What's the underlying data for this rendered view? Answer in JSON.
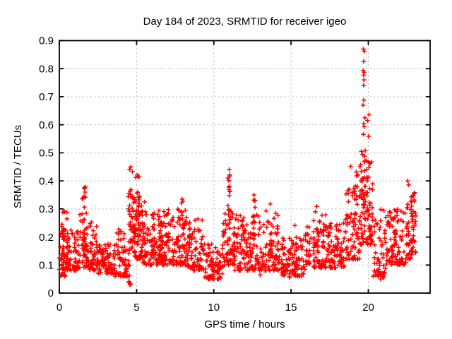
{
  "figure": {
    "background": "#ffffff"
  },
  "chart_data": {
    "type": "scatter",
    "title": "Day 184 of 2023, SRMTID for receiver igeo",
    "xlabel": "GPS time / hours",
    "ylabel": "SRMTID / TECUs",
    "xlim": [
      0,
      24
    ],
    "ylim": [
      0,
      0.9
    ],
    "xticks": [
      [
        0,
        "0"
      ],
      [
        5,
        "5"
      ],
      [
        10,
        "10"
      ],
      [
        15,
        "15"
      ],
      [
        20,
        "20"
      ]
    ],
    "yticks": [
      [
        0,
        "0"
      ],
      [
        0.1,
        "0.1"
      ],
      [
        0.2,
        "0.2"
      ],
      [
        0.3,
        "0.3"
      ],
      [
        0.4,
        "0.4"
      ],
      [
        0.5,
        "0.5"
      ],
      [
        0.6,
        "0.6"
      ],
      [
        0.7,
        "0.7"
      ],
      [
        0.8,
        "0.8"
      ],
      [
        0.9,
        "0.9"
      ]
    ],
    "grid": true,
    "legend": "none",
    "marker": "plus",
    "marker_color": "#ff0000",
    "frame_color": "#000000",
    "grid_color": "#b2b2b2",
    "seed": 184,
    "series_name": "SRMTID",
    "cloud_bands": [
      {
        "h0": 0.0,
        "h1": 0.4,
        "lo": 0.06,
        "hi": 0.25,
        "n": 40
      },
      {
        "h0": 0.4,
        "h1": 1.3,
        "lo": 0.08,
        "hi": 0.23,
        "n": 70
      },
      {
        "h0": 1.3,
        "h1": 1.95,
        "lo": 0.09,
        "hi": 0.3,
        "n": 50
      },
      {
        "h0": 1.95,
        "h1": 2.5,
        "lo": 0.08,
        "hi": 0.25,
        "n": 45
      },
      {
        "h0": 2.5,
        "h1": 3.6,
        "lo": 0.07,
        "hi": 0.18,
        "n": 80
      },
      {
        "h0": 3.6,
        "h1": 4.35,
        "lo": 0.06,
        "hi": 0.23,
        "n": 55
      },
      {
        "h0": 4.35,
        "h1": 4.62,
        "lo": 0.03,
        "hi": 0.17,
        "n": 14
      },
      {
        "h0": 4.62,
        "h1": 5.4,
        "lo": 0.12,
        "hi": 0.36,
        "n": 70
      },
      {
        "h0": 5.4,
        "h1": 6.3,
        "lo": 0.1,
        "hi": 0.29,
        "n": 70
      },
      {
        "h0": 6.3,
        "h1": 7.3,
        "lo": 0.1,
        "hi": 0.3,
        "n": 75
      },
      {
        "h0": 7.3,
        "h1": 8.3,
        "lo": 0.1,
        "hi": 0.3,
        "n": 75
      },
      {
        "h0": 8.3,
        "h1": 9.3,
        "lo": 0.08,
        "hi": 0.27,
        "n": 75
      },
      {
        "h0": 9.3,
        "h1": 10.6,
        "lo": 0.05,
        "hi": 0.18,
        "n": 85
      },
      {
        "h0": 10.6,
        "h1": 11.35,
        "lo": 0.1,
        "hi": 0.31,
        "n": 55
      },
      {
        "h0": 11.35,
        "h1": 12.35,
        "lo": 0.08,
        "hi": 0.28,
        "n": 70
      },
      {
        "h0": 12.35,
        "h1": 13.35,
        "lo": 0.08,
        "hi": 0.28,
        "n": 70
      },
      {
        "h0": 13.35,
        "h1": 14.2,
        "lo": 0.08,
        "hi": 0.3,
        "n": 60
      },
      {
        "h0": 14.2,
        "h1": 15.9,
        "lo": 0.06,
        "hi": 0.2,
        "n": 110
      },
      {
        "h0": 15.9,
        "h1": 17.25,
        "lo": 0.09,
        "hi": 0.28,
        "n": 85
      },
      {
        "h0": 17.25,
        "h1": 18.5,
        "lo": 0.09,
        "hi": 0.26,
        "n": 85
      },
      {
        "h0": 18.5,
        "h1": 19.45,
        "lo": 0.12,
        "hi": 0.38,
        "n": 70
      },
      {
        "h0": 19.45,
        "h1": 20.3,
        "lo": 0.17,
        "hi": 0.48,
        "n": 75
      },
      {
        "h0": 20.3,
        "h1": 21.1,
        "lo": 0.06,
        "hi": 0.3,
        "n": 55
      },
      {
        "h0": 21.1,
        "h1": 22.45,
        "lo": 0.1,
        "hi": 0.3,
        "n": 90
      },
      {
        "h0": 22.45,
        "h1": 23.1,
        "lo": 0.12,
        "hi": 0.34,
        "n": 50
      }
    ],
    "spike_columns": [
      {
        "h": 0.25,
        "w": 0.1,
        "lo": 0.14,
        "hi": 0.3,
        "n": 10
      },
      {
        "h": 0.55,
        "w": 0.08,
        "lo": 0.14,
        "hi": 0.31,
        "n": 6
      },
      {
        "h": 1.62,
        "w": 0.13,
        "lo": 0.15,
        "hi": 0.38,
        "n": 18
      },
      {
        "h": 2.1,
        "w": 0.1,
        "lo": 0.12,
        "hi": 0.26,
        "n": 6
      },
      {
        "h": 4.55,
        "w": 0.1,
        "lo": 0.18,
        "hi": 0.45,
        "n": 16
      },
      {
        "h": 4.85,
        "w": 0.15,
        "lo": 0.18,
        "hi": 0.43,
        "n": 18
      },
      {
        "h": 5.1,
        "w": 0.1,
        "lo": 0.2,
        "hi": 0.42,
        "n": 14
      },
      {
        "h": 5.45,
        "w": 0.08,
        "lo": 0.16,
        "hi": 0.33,
        "n": 8
      },
      {
        "h": 6.5,
        "w": 0.15,
        "lo": 0.16,
        "hi": 0.32,
        "n": 12
      },
      {
        "h": 7.0,
        "w": 0.1,
        "lo": 0.16,
        "hi": 0.3,
        "n": 8
      },
      {
        "h": 7.95,
        "w": 0.1,
        "lo": 0.18,
        "hi": 0.33,
        "n": 10
      },
      {
        "h": 8.45,
        "w": 0.1,
        "lo": 0.16,
        "hi": 0.29,
        "n": 8
      },
      {
        "h": 11.0,
        "w": 0.1,
        "lo": 0.15,
        "hi": 0.43,
        "n": 16
      },
      {
        "h": 11.9,
        "w": 0.1,
        "lo": 0.14,
        "hi": 0.3,
        "n": 8
      },
      {
        "h": 12.6,
        "w": 0.08,
        "lo": 0.18,
        "hi": 0.34,
        "n": 8
      },
      {
        "h": 13.7,
        "w": 0.12,
        "lo": 0.14,
        "hi": 0.32,
        "n": 10
      },
      {
        "h": 15.3,
        "w": 0.06,
        "lo": 0.13,
        "hi": 0.27,
        "n": 5
      },
      {
        "h": 16.6,
        "w": 0.15,
        "lo": 0.14,
        "hi": 0.31,
        "n": 12
      },
      {
        "h": 19.15,
        "w": 0.18,
        "lo": 0.2,
        "hi": 0.43,
        "n": 16
      },
      {
        "h": 19.7,
        "w": 0.12,
        "lo": 0.28,
        "hi": 0.52,
        "n": 16
      },
      {
        "h": 20.0,
        "w": 0.1,
        "lo": 0.28,
        "hi": 0.5,
        "n": 10
      },
      {
        "h": 21.6,
        "w": 0.2,
        "lo": 0.12,
        "hi": 0.3,
        "n": 12
      },
      {
        "h": 22.85,
        "w": 0.12,
        "lo": 0.18,
        "hi": 0.36,
        "n": 12
      }
    ],
    "extreme_points": [
      [
        19.68,
        0.87
      ],
      [
        19.74,
        0.862
      ],
      [
        19.7,
        0.826
      ],
      [
        19.67,
        0.793
      ],
      [
        19.73,
        0.787
      ],
      [
        19.7,
        0.777
      ],
      [
        19.72,
        0.76
      ],
      [
        19.69,
        0.741
      ],
      [
        19.71,
        0.688
      ],
      [
        19.66,
        0.67
      ],
      [
        20.05,
        0.636
      ],
      [
        19.78,
        0.625
      ],
      [
        19.95,
        0.615
      ],
      [
        19.7,
        0.604
      ],
      [
        19.73,
        0.593
      ],
      [
        19.68,
        0.566
      ],
      [
        20.02,
        0.559
      ],
      [
        19.55,
        0.505
      ],
      [
        19.63,
        0.494
      ],
      [
        19.76,
        0.488
      ],
      [
        19.86,
        0.472
      ],
      [
        19.99,
        0.468
      ],
      [
        19.5,
        0.458
      ],
      [
        18.86,
        0.452
      ],
      [
        20.12,
        0.462
      ],
      [
        4.62,
        0.45
      ],
      [
        4.55,
        0.441
      ],
      [
        4.73,
        0.433
      ],
      [
        5.05,
        0.421
      ],
      [
        4.95,
        0.412
      ],
      [
        11.0,
        0.44
      ],
      [
        11.03,
        0.421
      ],
      [
        10.97,
        0.401
      ],
      [
        11.0,
        0.381
      ],
      [
        11.05,
        0.362
      ],
      [
        22.55,
        0.4
      ],
      [
        22.61,
        0.386
      ],
      [
        1.62,
        0.376
      ],
      [
        1.66,
        0.36
      ],
      [
        1.59,
        0.345
      ],
      [
        19.22,
        0.432
      ],
      [
        19.33,
        0.421
      ],
      [
        23.0,
        0.358
      ],
      [
        22.92,
        0.348
      ],
      [
        22.96,
        0.332
      ],
      [
        12.6,
        0.35
      ],
      [
        12.63,
        0.331
      ],
      [
        7.95,
        0.335
      ],
      [
        7.9,
        0.321
      ],
      [
        13.65,
        0.318
      ],
      [
        4.5,
        0.04
      ],
      [
        4.58,
        0.034
      ],
      [
        20.8,
        0.05
      ],
      [
        10.3,
        0.05
      ],
      [
        9.95,
        0.06
      ],
      [
        14.9,
        0.055
      ],
      [
        0.08,
        0.062
      ],
      [
        4.45,
        0.058
      ],
      [
        21.0,
        0.055
      ],
      [
        13.0,
        0.065
      ]
    ]
  }
}
